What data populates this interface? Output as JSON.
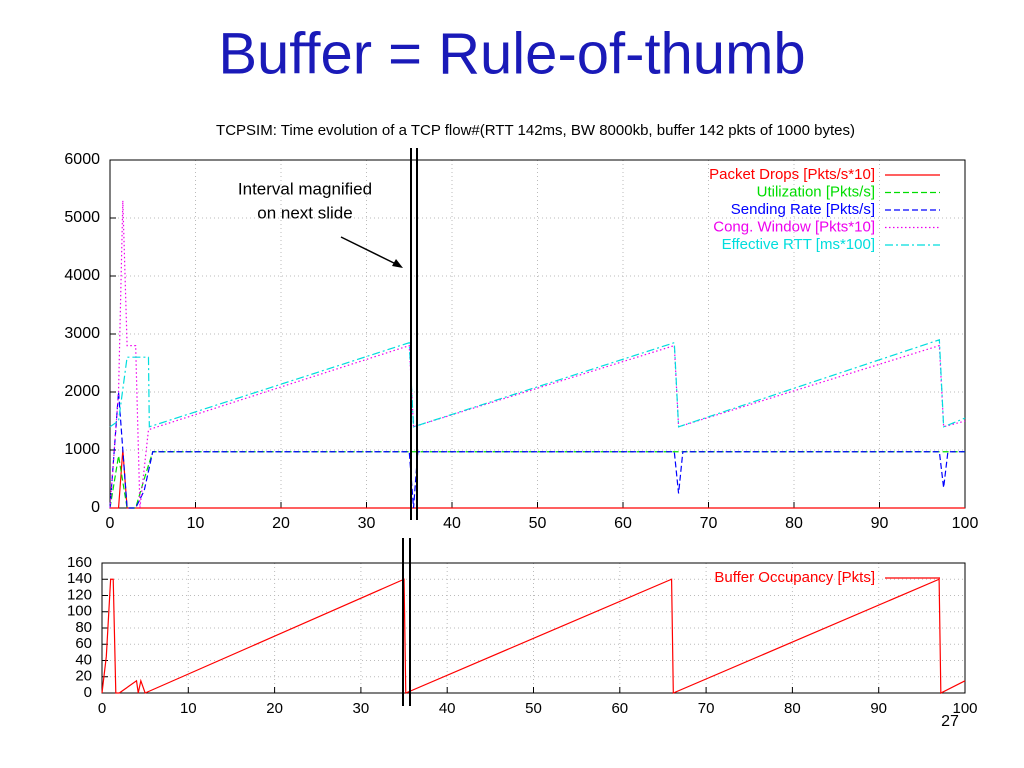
{
  "slide_title": "Buffer = Rule-of-thumb",
  "page_number": "27",
  "chart_data": [
    {
      "type": "line",
      "title": "TCPSIM: Time evolution of a TCP flow#(RTT 142ms, BW 8000kb, buffer 142 pkts of 1000 bytes)",
      "annotations": [
        "Interval magnified",
        "on next slide"
      ],
      "xlim": [
        0,
        100
      ],
      "xticks": [
        0,
        10,
        20,
        30,
        40,
        50,
        60,
        70,
        80,
        90,
        100
      ],
      "ylim": [
        0,
        6000
      ],
      "yticks": [
        0,
        1000,
        2000,
        3000,
        4000,
        5000,
        6000
      ],
      "grid": true,
      "legend": "upper right",
      "series": [
        {
          "name": "Packet Drops [Pkts/s*10]",
          "color": "#ff0000",
          "style": "solid",
          "x": [
            0,
            1,
            1.5,
            2,
            100
          ],
          "values": [
            0,
            0,
            1000,
            0,
            0
          ]
        },
        {
          "name": "Utilization [Pkts/s]",
          "color": "#00dd00",
          "style": "dashed",
          "x": [
            0,
            1,
            2,
            3,
            4,
            5,
            100
          ],
          "values": [
            0,
            900,
            0,
            0,
            500,
            970,
            970
          ]
        },
        {
          "name": "Sending Rate [Pkts/s]",
          "color": "#0000ff",
          "style": "dashed",
          "x": [
            0,
            1,
            1.5,
            2,
            3,
            4,
            5,
            35,
            35.5,
            36,
            66,
            66.5,
            67,
            97,
            97.5,
            98,
            100
          ],
          "values": [
            0,
            2000,
            1000,
            0,
            0,
            300,
            970,
            970,
            0,
            970,
            970,
            250,
            970,
            970,
            350,
            970,
            970
          ]
        },
        {
          "name": "Cong. Window [Pkts*10]",
          "color": "#ee00ee",
          "style": "dotted",
          "x": [
            0,
            1,
            1.5,
            2,
            3,
            3.5,
            4.5,
            35,
            35.5,
            66,
            66.5,
            97,
            97.5,
            100
          ],
          "values": [
            0,
            2000,
            5300,
            2800,
            2800,
            0,
            1350,
            2800,
            1400,
            2800,
            1400,
            2800,
            1400,
            1500
          ]
        },
        {
          "name": "Effective RTT [ms*100]",
          "color": "#00dddd",
          "style": "dashdot",
          "x": [
            0,
            1,
            2,
            4.5,
            4.6,
            35,
            35.5,
            66,
            66.5,
            97,
            97.5,
            100
          ],
          "values": [
            1400,
            1500,
            2600,
            2600,
            1400,
            2850,
            1400,
            2850,
            1400,
            2900,
            1400,
            1550
          ]
        }
      ]
    },
    {
      "type": "line",
      "xlim": [
        0,
        100
      ],
      "xticks": [
        0,
        10,
        20,
        30,
        40,
        50,
        60,
        70,
        80,
        90,
        100
      ],
      "ylim": [
        0,
        160
      ],
      "yticks": [
        0,
        20,
        40,
        60,
        80,
        100,
        120,
        140,
        160
      ],
      "grid": true,
      "legend": "upper right",
      "series": [
        {
          "name": "Buffer Occupancy [Pkts]",
          "color": "#ff0000",
          "style": "solid",
          "x": [
            0,
            0.5,
            1,
            1.3,
            1.6,
            2,
            4,
            4.2,
            4.5,
            5,
            35,
            35.2,
            66,
            66.2,
            97,
            97.2,
            100
          ],
          "values": [
            0,
            45,
            140,
            140,
            0,
            0,
            15,
            0,
            15,
            0,
            140,
            0,
            140,
            0,
            140,
            0,
            15
          ]
        }
      ]
    }
  ]
}
